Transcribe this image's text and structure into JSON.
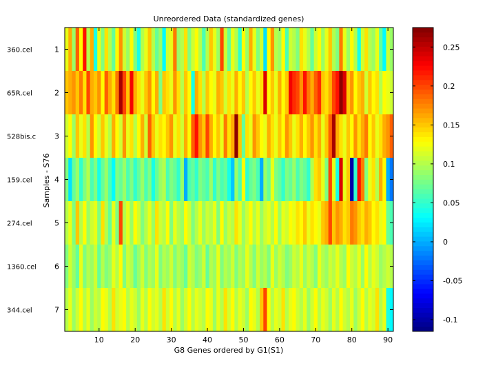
{
  "chart_data": {
    "type": "heatmap",
    "title": "Unreordered Data (standardized genes)",
    "xlabel": "G8 Genes ordered by G1(S1)",
    "ylabel": "Samples - S76",
    "x_range": [
      0.5,
      91.5
    ],
    "x_ticks": [
      10,
      20,
      30,
      40,
      50,
      60,
      70,
      80,
      90
    ],
    "row_labels": [
      "360.cel",
      "65R.cel",
      "528bis.c",
      "159.cel",
      "274.cel",
      "1360.cel",
      "344.cel"
    ],
    "row_ticks": [
      1,
      2,
      3,
      4,
      5,
      6,
      7
    ],
    "n_cols": 91,
    "colormap": "jet",
    "color_range": [
      -0.115,
      0.275
    ],
    "colorbar_ticks": [
      -0.1,
      -0.05,
      0,
      0.05,
      0.1,
      0.15,
      0.2,
      0.25
    ],
    "rows": [
      [
        0.12,
        0.16,
        0.09,
        0.19,
        0.13,
        0.22,
        0.1,
        0.16,
        0.04,
        0.12,
        0.08,
        0.14,
        0.1,
        0.07,
        0.13,
        0.17,
        0.11,
        0.09,
        0.13,
        0.08,
        0.04,
        0.1,
        0.12,
        0.15,
        0.1,
        0.07,
        0.09,
        0.03,
        0.11,
        0.12,
        0.18,
        0.09,
        0.1,
        0.14,
        0.08,
        0.11,
        0.13,
        0.1,
        0.06,
        0.1,
        0.15,
        0.12,
        0.09,
        0.2,
        0.11,
        0.07,
        0.12,
        0.1,
        0.05,
        0.13,
        0.09,
        0.16,
        0.12,
        0.08,
        0.11,
        0.02,
        0.13,
        0.17,
        0.1,
        0.09,
        0.13,
        0.06,
        0.11,
        0.1,
        0.08,
        0.14,
        0.12,
        0.1,
        0.07,
        0.11,
        0.13,
        0.09,
        0.12,
        0.15,
        0.1,
        0.08,
        0.18,
        0.12,
        0.09,
        0.13,
        0.1,
        0.04,
        0.11,
        0.14,
        0.1,
        0.09,
        0.12,
        0.07,
        0.03,
        0.11,
        0.09
      ],
      [
        0.15,
        0.16,
        0.17,
        0.15,
        0.18,
        0.14,
        0.2,
        0.16,
        0.15,
        0.17,
        0.13,
        0.19,
        0.16,
        0.14,
        0.18,
        0.26,
        0.2,
        0.15,
        0.23,
        0.16,
        0.14,
        0.12,
        0.15,
        0.17,
        0.13,
        0.16,
        0.08,
        0.15,
        0.14,
        0.12,
        0.17,
        0.14,
        0.1,
        0.15,
        0.13,
        0.04,
        0.16,
        0.14,
        0.1,
        0.15,
        0.13,
        0.12,
        0.16,
        0.15,
        0.11,
        0.14,
        0.12,
        0.16,
        0.13,
        0.15,
        0.1,
        0.13,
        0.15,
        0.12,
        0.14,
        0.24,
        0.13,
        0.15,
        0.12,
        0.16,
        0.13,
        0.15,
        0.23,
        0.21,
        0.2,
        0.17,
        0.22,
        0.18,
        0.16,
        0.19,
        0.21,
        0.15,
        0.14,
        0.16,
        0.2,
        0.22,
        0.27,
        0.24,
        0.15,
        0.17,
        0.13,
        0.15,
        0.16,
        0.11,
        0.15,
        0.13,
        0.14,
        0.1,
        0.13,
        0.12,
        0.11
      ],
      [
        0.11,
        0.13,
        0.09,
        0.15,
        0.12,
        0.14,
        0.1,
        0.17,
        0.13,
        0.11,
        0.15,
        0.12,
        0.1,
        0.16,
        0.13,
        0.11,
        0.17,
        0.12,
        0.14,
        0.1,
        0.13,
        0.16,
        0.11,
        0.19,
        0.15,
        0.12,
        0.14,
        0.13,
        0.15,
        0.17,
        0.12,
        0.14,
        0.11,
        0.16,
        0.13,
        0.19,
        0.22,
        0.17,
        0.15,
        0.2,
        0.16,
        0.13,
        0.15,
        0.12,
        0.18,
        0.14,
        0.16,
        0.27,
        0.15,
        0.07,
        0.14,
        0.12,
        0.17,
        0.15,
        0.13,
        0.12,
        0.16,
        0.14,
        0.12,
        0.15,
        0.13,
        0.17,
        0.15,
        0.12,
        0.14,
        0.16,
        0.13,
        0.15,
        0.17,
        0.14,
        0.16,
        0.12,
        0.15,
        0.19,
        0.26,
        0.16,
        0.14,
        0.12,
        0.15,
        0.13,
        0.17,
        0.14,
        0.16,
        0.18,
        0.13,
        0.15,
        0.12,
        0.14,
        0.16,
        0.17,
        0.19
      ],
      [
        0.08,
        0.02,
        0.07,
        0.09,
        0.05,
        0.08,
        0.1,
        0.06,
        0.08,
        0.04,
        0.07,
        0.09,
        0.06,
        0.03,
        0.08,
        0.07,
        0.09,
        0.06,
        0.08,
        0.05,
        0.07,
        0.09,
        0.06,
        0.08,
        0.04,
        0.07,
        0.09,
        0.1,
        0.06,
        0.08,
        0.07,
        0.05,
        0.09,
        0.0,
        0.06,
        0.07,
        0.05,
        0.08,
        0.07,
        0.06,
        0.09,
        0.05,
        0.08,
        0.06,
        0.07,
        0.04,
        0.01,
        0.09,
        0.06,
        0.13,
        0.05,
        0.07,
        0.08,
        0.06,
        0.0,
        0.09,
        0.07,
        0.12,
        0.08,
        0.07,
        0.05,
        0.08,
        0.07,
        0.09,
        0.06,
        0.08,
        0.07,
        0.05,
        0.1,
        0.14,
        0.15,
        0.12,
        0.08,
        0.2,
        0.12,
        0.04,
        0.24,
        0.12,
        0.15,
        -0.1,
        0.05,
        0.22,
        0.18,
        0.08,
        0.12,
        0.14,
        0.1,
        0.16,
        0.13,
        0.0,
        -0.02
      ],
      [
        0.1,
        0.12,
        0.08,
        0.15,
        0.1,
        0.13,
        0.09,
        0.11,
        0.12,
        0.08,
        0.14,
        0.1,
        0.07,
        0.12,
        0.08,
        0.2,
        0.1,
        0.12,
        0.09,
        0.13,
        0.11,
        0.08,
        0.1,
        0.12,
        0.09,
        0.14,
        0.11,
        0.1,
        0.13,
        0.08,
        0.12,
        0.1,
        0.09,
        0.13,
        0.11,
        0.08,
        0.1,
        0.12,
        0.09,
        0.11,
        0.1,
        0.12,
        0.08,
        0.13,
        0.09,
        0.11,
        0.1,
        0.14,
        0.12,
        0.09,
        0.11,
        0.13,
        0.1,
        0.12,
        0.09,
        0.11,
        0.12,
        0.1,
        0.13,
        0.09,
        0.12,
        0.11,
        0.13,
        0.12,
        0.14,
        0.13,
        0.15,
        0.12,
        0.14,
        0.13,
        0.12,
        0.15,
        0.16,
        0.2,
        0.15,
        0.17,
        0.16,
        0.14,
        0.15,
        0.18,
        0.17,
        0.15,
        0.14,
        0.16,
        0.15,
        0.13,
        0.14,
        0.12,
        0.13,
        0.07,
        0.06
      ],
      [
        0.08,
        0.11,
        0.09,
        0.07,
        0.12,
        0.08,
        0.1,
        0.09,
        0.11,
        0.07,
        0.1,
        0.08,
        0.09,
        0.12,
        0.1,
        0.13,
        0.08,
        0.11,
        0.1,
        0.07,
        0.09,
        0.11,
        0.08,
        0.1,
        0.09,
        0.12,
        0.08,
        0.1,
        0.09,
        0.11,
        0.08,
        0.1,
        0.09,
        0.07,
        0.11,
        0.1,
        0.08,
        0.09,
        0.11,
        0.07,
        0.1,
        0.09,
        0.12,
        0.08,
        0.1,
        0.09,
        0.11,
        0.08,
        0.1,
        0.09,
        0.12,
        0.1,
        0.08,
        0.11,
        0.09,
        0.1,
        0.08,
        0.12,
        0.09,
        0.11,
        0.1,
        0.08,
        0.09,
        0.11,
        0.1,
        0.12,
        0.09,
        0.11,
        0.1,
        0.08,
        0.12,
        0.1,
        0.09,
        0.11,
        0.1,
        0.12,
        0.1,
        0.09,
        0.13,
        0.11,
        0.1,
        0.12,
        0.09,
        0.13,
        0.1,
        0.12,
        0.11,
        0.09,
        0.1,
        0.11,
        0.1
      ],
      [
        0.1,
        0.12,
        0.09,
        0.11,
        0.13,
        0.1,
        0.12,
        0.09,
        0.11,
        0.1,
        0.13,
        0.12,
        0.1,
        0.14,
        0.11,
        0.12,
        0.13,
        0.1,
        0.12,
        0.11,
        0.09,
        0.12,
        0.1,
        0.13,
        0.11,
        0.12,
        0.1,
        0.14,
        0.11,
        0.13,
        0.1,
        0.12,
        0.09,
        0.11,
        0.13,
        0.1,
        0.12,
        0.11,
        0.1,
        0.13,
        0.12,
        0.09,
        0.12,
        0.1,
        0.14,
        0.11,
        0.13,
        0.1,
        0.12,
        0.11,
        0.09,
        0.13,
        0.12,
        0.1,
        0.15,
        0.2,
        0.13,
        0.1,
        0.12,
        0.11,
        0.14,
        0.1,
        0.12,
        0.13,
        0.11,
        0.1,
        0.12,
        0.09,
        0.11,
        0.13,
        0.1,
        0.12,
        0.11,
        0.09,
        0.12,
        0.1,
        0.13,
        0.11,
        0.1,
        0.12,
        0.09,
        0.11,
        0.13,
        0.1,
        0.12,
        0.11,
        0.14,
        0.1,
        0.12,
        0.04,
        0.03
      ]
    ]
  }
}
